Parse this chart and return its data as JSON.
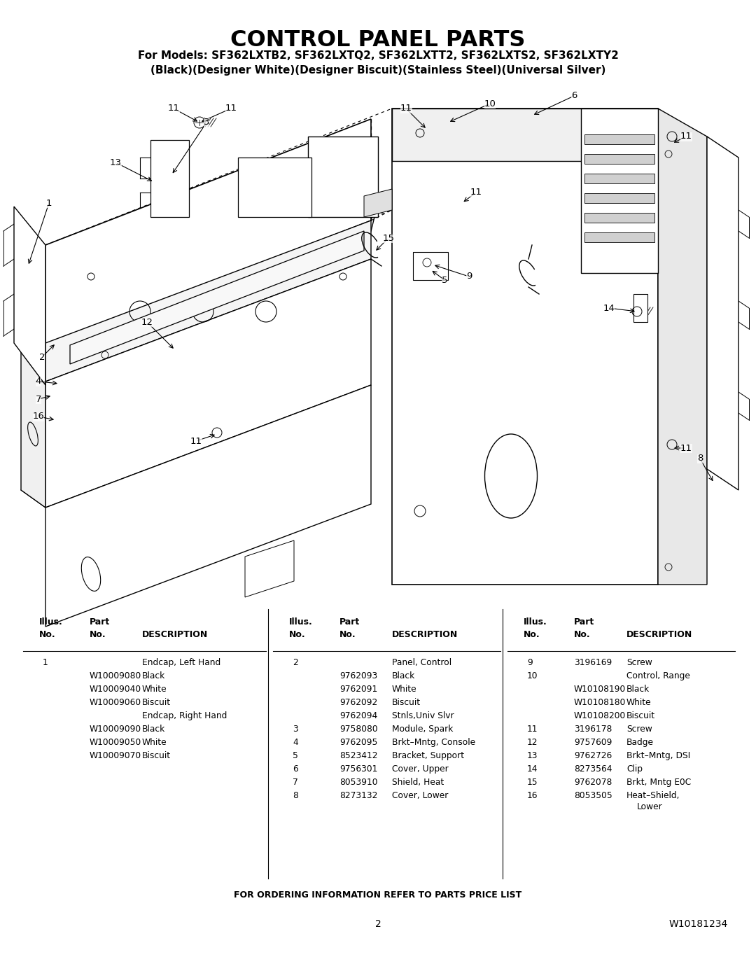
{
  "title": "CONTROL PANEL PARTS",
  "subtitle1": "For Models: SF362LXTB2, SF362LXTQ2, SF362LXTT2, SF362LXTS2, SF362LXTY2",
  "subtitle2": "(Black)(Designer White)(Designer Biscuit)(Stainless Steel)(Universal Silver)",
  "footer_note": "FOR ORDERING INFORMATION REFER TO PARTS PRICE LIST",
  "page_number": "2",
  "doc_number": "W10181234",
  "bg_color": "#ffffff",
  "col1_rows": [
    [
      "1",
      "",
      "Endcap, Left Hand"
    ],
    [
      "",
      "W10009080",
      "Black"
    ],
    [
      "",
      "W10009040",
      "White"
    ],
    [
      "",
      "W10009060",
      "Biscuit"
    ],
    [
      "",
      "",
      "Endcap, Right Hand"
    ],
    [
      "",
      "W10009090",
      "Black"
    ],
    [
      "",
      "W10009050",
      "White"
    ],
    [
      "",
      "W10009070",
      "Biscuit"
    ]
  ],
  "col2_rows": [
    [
      "2",
      "",
      "Panel, Control"
    ],
    [
      "",
      "9762093",
      "Black"
    ],
    [
      "",
      "9762091",
      "White"
    ],
    [
      "",
      "9762092",
      "Biscuit"
    ],
    [
      "",
      "9762094",
      "Stnls,Univ Slvr"
    ],
    [
      "3",
      "9758080",
      "Module, Spark"
    ],
    [
      "4",
      "9762095",
      "Brkt–Mntg, Console"
    ],
    [
      "5",
      "8523412",
      "Bracket, Support"
    ],
    [
      "6",
      "9756301",
      "Cover, Upper"
    ],
    [
      "7",
      "8053910",
      "Shield, Heat"
    ],
    [
      "8",
      "8273132",
      "Cover, Lower"
    ]
  ],
  "col3_rows": [
    [
      "9",
      "3196169",
      "Screw"
    ],
    [
      "10",
      "",
      "Control, Range"
    ],
    [
      "",
      "W10108190",
      "Black"
    ],
    [
      "",
      "W10108180",
      "White"
    ],
    [
      "",
      "W10108200",
      "Biscuit"
    ],
    [
      "11",
      "3196178",
      "Screw"
    ],
    [
      "12",
      "9757609",
      "Badge"
    ],
    [
      "13",
      "9762726",
      "Brkt–Mntg, DSI"
    ],
    [
      "14",
      "8273564",
      "Clip"
    ],
    [
      "15",
      "9762078",
      "Brkt, Mntg E0C"
    ],
    [
      "16",
      "8053505",
      "Heat–Shield,\nLower"
    ]
  ]
}
